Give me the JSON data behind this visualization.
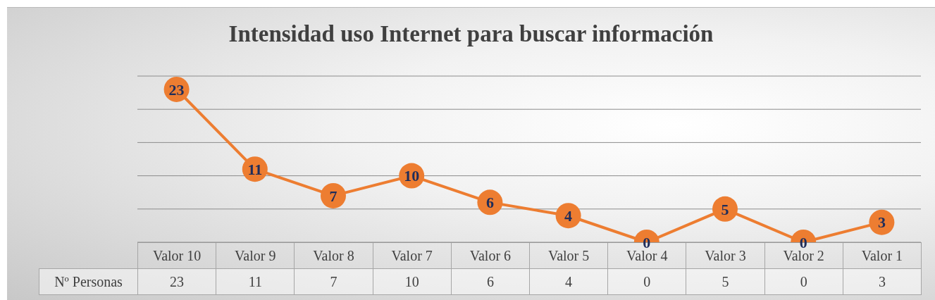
{
  "chart_data": {
    "type": "line",
    "title": "Intensidad uso Internet para buscar información",
    "categories": [
      "Valor 10",
      "Valor 9",
      "Valor 8",
      "Valor 7",
      "Valor 6",
      "Valor 5",
      "Valor 4",
      "Valor 3",
      "Valor 2",
      "Valor 1"
    ],
    "series": [
      {
        "name": "Nº Personas",
        "color": "#ed7d31",
        "values": [
          23,
          11,
          7,
          10,
          6,
          4,
          0,
          5,
          0,
          3
        ]
      }
    ],
    "annotations": [
      {
        "text": "23",
        "x": "Valor 10",
        "y": 23
      },
      {
        "text": "11",
        "x": "Valor 9",
        "y": 11
      },
      {
        "text": "7",
        "x": "Valor 8",
        "y": 7
      },
      {
        "text": "10",
        "x": "Valor 7",
        "y": 10
      },
      {
        "text": "6",
        "x": "Valor 6",
        "y": 6
      },
      {
        "text": "4",
        "x": "Valor 5",
        "y": 4
      },
      {
        "text": "0",
        "x": "Valor 4",
        "y": 0
      },
      {
        "text": "5",
        "x": "Valor 3",
        "y": 5
      },
      {
        "text": "0",
        "x": "Valor 2",
        "y": 0
      },
      {
        "text": "3",
        "x": "Valor 1",
        "y": 3
      }
    ],
    "ylim": [
      0,
      25
    ],
    "yticks": [
      {
        "value": 0,
        "label": null
      },
      {
        "value": 5,
        "label": null
      },
      {
        "value": 10,
        "label": null
      },
      {
        "value": 15,
        "label": null
      },
      {
        "value": 20,
        "label": null
      },
      {
        "value": 25,
        "label": null
      }
    ],
    "tick_labels": "x",
    "grid": "y",
    "marker": "circle",
    "line_style": "solid",
    "data_labels": true
  }
}
